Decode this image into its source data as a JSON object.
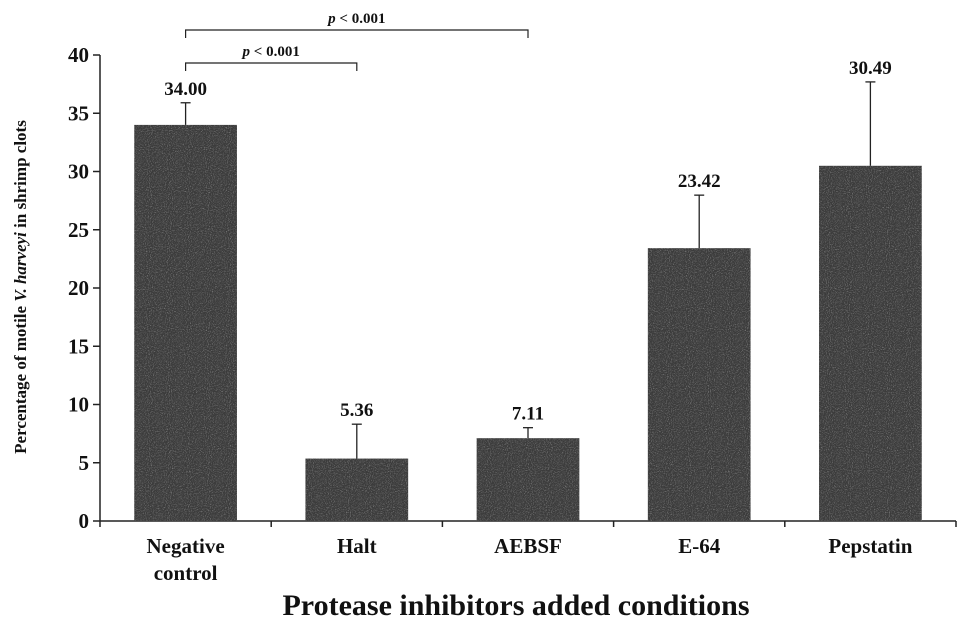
{
  "chart_data": {
    "type": "bar",
    "categories": [
      [
        "Negative",
        "control"
      ],
      [
        "Halt"
      ],
      [
        "AEBSF"
      ],
      [
        "E-64"
      ],
      [
        "Pepstatin"
      ]
    ],
    "values": [
      34.0,
      5.36,
      7.11,
      23.42,
      30.49
    ],
    "value_labels": [
      "34.00",
      "5.36",
      "7.11",
      "23.42",
      "30.49"
    ],
    "error_upper": [
      1.9,
      2.95,
      0.9,
      4.55,
      7.2
    ],
    "ylim": [
      0,
      40
    ],
    "yticks": [
      0,
      5,
      10,
      15,
      20,
      25,
      30,
      35,
      40
    ],
    "ylabel": {
      "before": "Percentage of motile ",
      "italic": "V. harveyi",
      "after": " in shrimp clots"
    },
    "xlabel": "Protease inhibitors added conditions",
    "bar_color": "#3d3d3d",
    "significance": [
      {
        "from": 0,
        "to": 1,
        "p_symbol": "p",
        "p_text": " < 0.001"
      },
      {
        "from": 0,
        "to": 2,
        "p_symbol": "p",
        "p_text": " < 0.001"
      }
    ]
  }
}
